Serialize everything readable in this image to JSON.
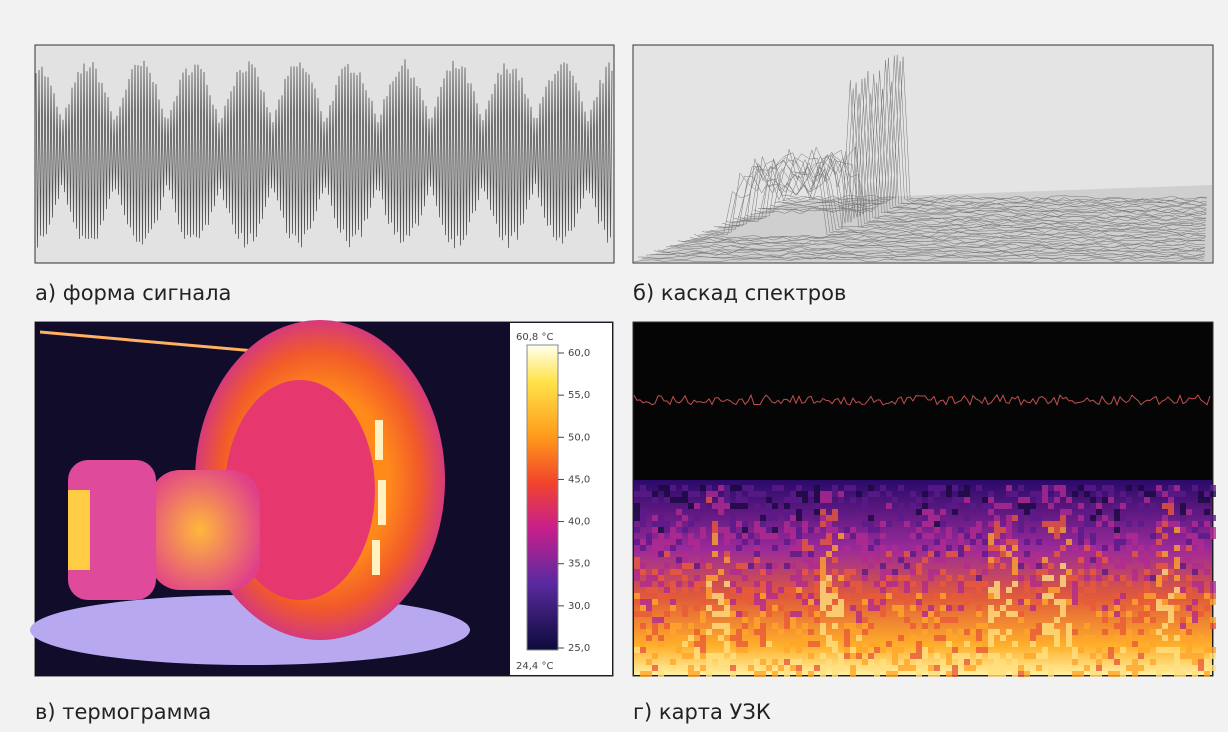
{
  "panels": [
    {
      "caption": "а) форма сигнала"
    },
    {
      "caption": "б) каскад спектров"
    },
    {
      "caption": "в) термограмма",
      "colorbar": {
        "max_label": "60,8 °C",
        "min_label": "24,4 °C",
        "ticks": [
          "60,0",
          "55,0",
          "50,0",
          "45,0",
          "40,0",
          "35,0",
          "30,0",
          "25,0"
        ]
      }
    },
    {
      "caption": "г) карта УЗК"
    }
  ]
}
